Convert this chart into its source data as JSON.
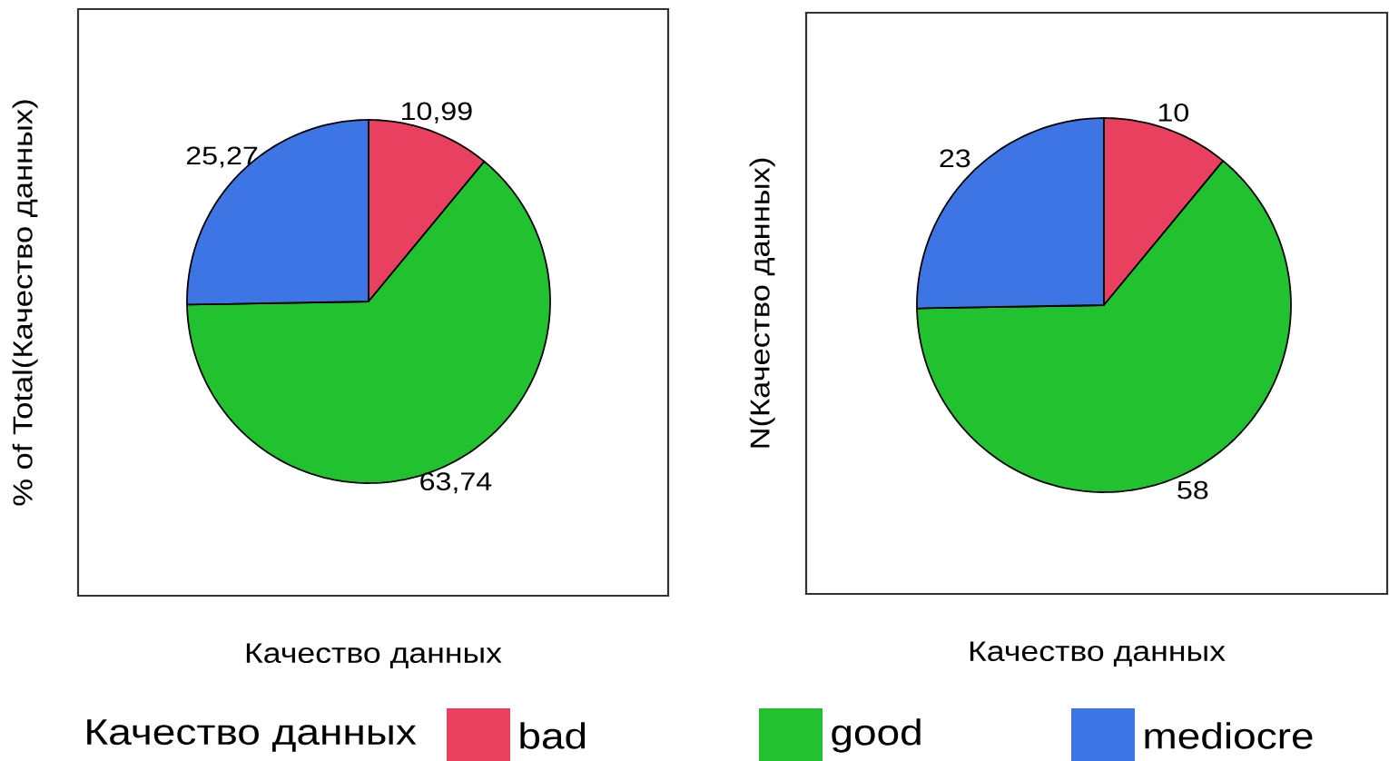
{
  "chart_data": [
    {
      "type": "pie",
      "xlabel": "Качество данных",
      "ylabel": "% of Total(Качество данных)",
      "categories": [
        "bad",
        "good",
        "mediocre"
      ],
      "values": [
        10.99,
        63.74,
        25.27
      ],
      "value_labels": [
        "10,99",
        "63,74",
        "25,27"
      ],
      "colors": [
        "#e8405e",
        "#22c12f",
        "#3d76e4"
      ],
      "legend": "bottom",
      "legend_title": "Качество данных"
    },
    {
      "type": "pie",
      "xlabel": "Качество данных",
      "ylabel": "N(Качество данных)",
      "values": [
        10,
        58,
        23
      ],
      "data_labels": true,
      "colors": [
        "#e8405e",
        "#22c12f",
        "#3d76e4"
      ]
    }
  ]
}
